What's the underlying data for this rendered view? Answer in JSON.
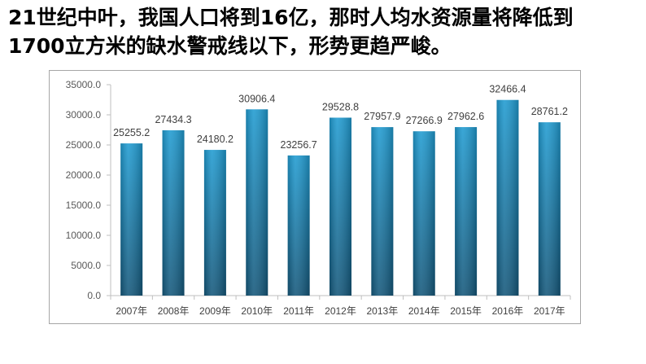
{
  "headline": {
    "line1": "21世纪中叶，我国人口将到16亿，那时人均水资源量将降低到",
    "line2": "1700立方米的缺水警戒线以下，形势更趋严峻。"
  },
  "chart_data": {
    "type": "bar",
    "title": "",
    "xlabel": "",
    "ylabel": "",
    "categories": [
      "2007年",
      "2008年",
      "2009年",
      "2010年",
      "2011年",
      "2012年",
      "2013年",
      "2014年",
      "2015年",
      "2016年",
      "2017年"
    ],
    "series": [
      {
        "values": [
          25255.2,
          27434.3,
          24180.2,
          30906.4,
          23256.7,
          29528.8,
          27957.9,
          27266.9,
          27962.6,
          32466.4,
          28761.2
        ]
      }
    ],
    "data_labels": [
      "25255.2",
      "27434.3",
      "24180.2",
      "30906.4",
      "23256.7",
      "29528.8",
      "27957.9",
      "27266.9",
      "27962.6",
      "32466.4",
      "28761.2"
    ],
    "ylim": [
      0,
      35000
    ],
    "yticks": [
      0,
      5000,
      10000,
      15000,
      20000,
      25000,
      30000,
      35000
    ],
    "ytick_labels": [
      "0.0",
      "5000.0",
      "10000.0",
      "15000.0",
      "20000.0",
      "25000.0",
      "30000.0",
      "35000.0"
    ],
    "grid": false,
    "legend": "none",
    "colors": {
      "bar_top": "#1f9bd1",
      "bar_bottom": "#14577a",
      "axis": "#bfbfbf"
    }
  }
}
